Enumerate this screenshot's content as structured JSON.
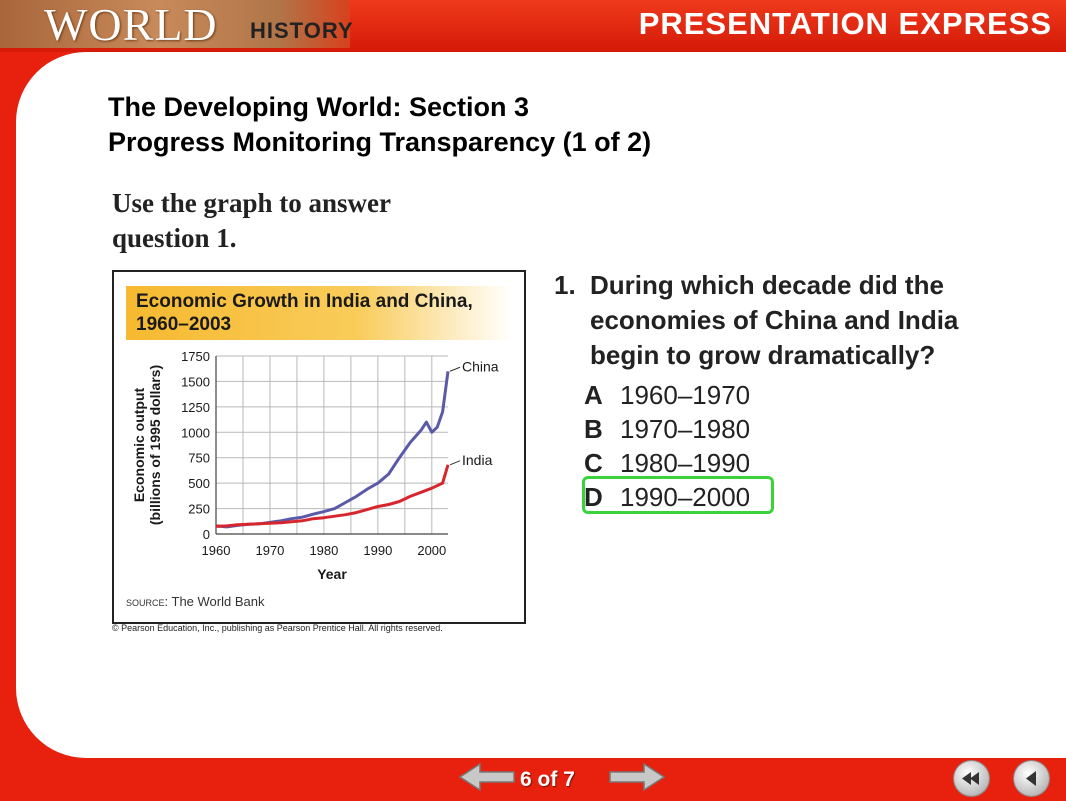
{
  "header": {
    "brand_world": "WORLD",
    "brand_history": "HISTORY",
    "product_title": "PRESENTATION EXPRESS"
  },
  "slide": {
    "title_line1": "The Developing World: Section 3",
    "title_line2": "Progress Monitoring Transparency (1 of 2)",
    "instruction_line1": "Use the graph to answer",
    "instruction_line2": "question 1.",
    "copyright": "© Pearson Education, Inc., publishing as Pearson Prentice Hall. All rights reserved."
  },
  "chart_data": {
    "type": "line",
    "title_line1": "Economic Growth in India and China,",
    "title_line2": "1960–2003",
    "xlabel": "Year",
    "ylabel_line1": "Economic output",
    "ylabel_line2": "(billions of 1995 dollars)",
    "xlim": [
      1960,
      2003
    ],
    "ylim": [
      0,
      1750
    ],
    "x_ticks": [
      1960,
      1970,
      1980,
      1990,
      2000
    ],
    "y_ticks": [
      0,
      250,
      500,
      750,
      1000,
      1250,
      1500,
      1750
    ],
    "grid": true,
    "source_prefix": "Source:",
    "source_text": " The World Bank",
    "series": [
      {
        "name": "China",
        "color": "#5a5aa8",
        "x": [
          1960,
          1962,
          1964,
          1966,
          1968,
          1970,
          1972,
          1974,
          1976,
          1978,
          1980,
          1982,
          1984,
          1986,
          1988,
          1990,
          1992,
          1994,
          1996,
          1998,
          1999,
          2000,
          2001,
          2002,
          2003
        ],
        "y": [
          80,
          70,
          85,
          95,
          100,
          115,
          130,
          150,
          165,
          195,
          220,
          250,
          310,
          370,
          440,
          500,
          590,
          750,
          900,
          1020,
          1100,
          1000,
          1050,
          1200,
          1600
        ]
      },
      {
        "name": "India",
        "color": "#d8262e",
        "x": [
          1960,
          1962,
          1964,
          1966,
          1968,
          1970,
          1972,
          1974,
          1976,
          1978,
          1980,
          1982,
          1984,
          1986,
          1988,
          1990,
          1992,
          1994,
          1996,
          1998,
          2000,
          2002,
          2003
        ],
        "y": [
          75,
          80,
          90,
          95,
          100,
          105,
          110,
          120,
          130,
          150,
          160,
          175,
          190,
          210,
          240,
          270,
          290,
          320,
          370,
          410,
          450,
          500,
          680
        ]
      }
    ]
  },
  "question": {
    "number": "1.",
    "text": "During which decade did the economies of China and India begin to grow dramatically?",
    "options": [
      {
        "letter": "A",
        "text": "1960–1970"
      },
      {
        "letter": "B",
        "text": "1970–1980"
      },
      {
        "letter": "C",
        "text": "1980–1990"
      },
      {
        "letter": "D",
        "text": "1990–2000"
      }
    ],
    "highlighted_letter": "D",
    "highlight_color": "#3cd23c"
  },
  "footer": {
    "page_indicator": "6 of 7",
    "prev_icon": "arrow-left-icon",
    "next_icon": "arrow-right-icon",
    "rewind_icon": "rewind-icon",
    "back_icon": "back-triangle-icon"
  }
}
